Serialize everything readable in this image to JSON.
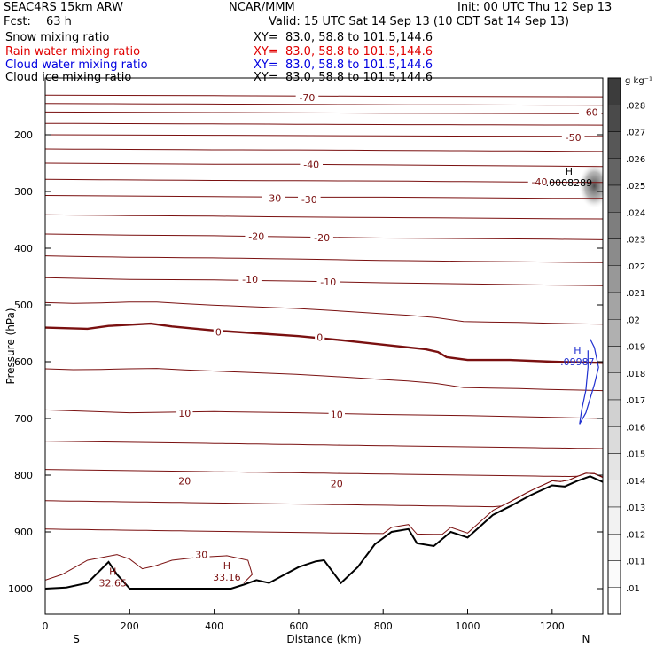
{
  "header": {
    "model": "SEAC4RS 15km ARW",
    "org": "NCAR/MMM",
    "init": "Init: 00 UTC Thu 12 Sep 13",
    "fcst_label": "Fcst:",
    "fcst_value": "63 h",
    "valid": "Valid: 15 UTC Sat 14 Sep 13 (10 CDT Sat 14 Sep 13)"
  },
  "fields": [
    {
      "label": "Snow mixing ratio",
      "xy": "XY=  83.0, 58.8 to 101.5,144.6",
      "color": "#000000"
    },
    {
      "label": "Rain water mixing ratio",
      "xy": "XY=  83.0, 58.8 to 101.5,144.6",
      "color": "#e00000"
    },
    {
      "label": "Cloud water mixing ratio",
      "xy": "XY=  83.0, 58.8 to 101.5,144.6",
      "color": "#0000e0"
    },
    {
      "label": "Cloud ice mixing ratio",
      "xy": "XY=  83.0, 58.8 to 101.5,144.6",
      "color": "#000000"
    }
  ],
  "colorbar": {
    "unit": "g kg⁻¹",
    "labels": [
      ".028",
      ".027",
      ".026",
      ".025",
      ".024",
      ".023",
      ".022",
      ".021",
      ".02",
      ".019",
      ".018",
      ".017",
      ".016",
      ".015",
      ".014",
      ".013",
      ".012",
      ".011",
      ".01"
    ],
    "gray_shades": [
      "#3c3c3c",
      "#4a4a4a",
      "#575757",
      "#646464",
      "#717171",
      "#7e7e7e",
      "#8b8b8b",
      "#989898",
      "#a4a4a4",
      "#b0b0b0",
      "#bcbcbc",
      "#c7c7c7",
      "#d1d1d1",
      "#dbdbdb",
      "#e4e4e4",
      "#ecececff",
      "#f2f2f2",
      "#f7f7f7",
      "#fbfbfb",
      "#ffffff"
    ]
  },
  "chart_data": {
    "type": "contour cross-section",
    "xlabel": "Distance (km)",
    "ylabel": "Pressure (hPa)",
    "xlim": [
      0,
      1320
    ],
    "ylim": [
      1050,
      100
    ],
    "x_ticks": [
      0,
      200,
      400,
      600,
      800,
      1000,
      1200
    ],
    "y_ticks": [
      200,
      300,
      400,
      500,
      600,
      700,
      800,
      900,
      1000
    ],
    "x_end_labels": {
      "left": "S",
      "right": "N"
    },
    "temperature_contours": [
      {
        "value": 10,
        "label": "10",
        "points": [
          [
            0,
            685
          ],
          [
            200,
            690
          ],
          [
            400,
            688
          ],
          [
            600,
            690
          ],
          [
            800,
            693
          ],
          [
            1000,
            695
          ],
          [
            1200,
            698
          ],
          [
            1320,
            700
          ]
        ],
        "label_at": [
          [
            330,
            691
          ],
          [
            690,
            693
          ]
        ]
      },
      {
        "value": 0,
        "label": "0",
        "points": [
          [
            0,
            540
          ],
          [
            100,
            542
          ],
          [
            150,
            537
          ],
          [
            250,
            533
          ],
          [
            300,
            538
          ],
          [
            400,
            545
          ],
          [
            500,
            550
          ],
          [
            600,
            555
          ],
          [
            700,
            562
          ],
          [
            800,
            570
          ],
          [
            900,
            578
          ],
          [
            930,
            583
          ],
          [
            950,
            592
          ],
          [
            1000,
            597
          ],
          [
            1100,
            597
          ],
          [
            1200,
            600
          ],
          [
            1320,
            602
          ]
        ],
        "label_at": [
          [
            410,
            548
          ],
          [
            650,
            557
          ]
        ]
      },
      {
        "value": -10,
        "label": "-10",
        "points": [
          [
            0,
            452
          ],
          [
            200,
            455
          ],
          [
            400,
            456
          ],
          [
            600,
            458
          ],
          [
            800,
            461
          ],
          [
            1000,
            463
          ],
          [
            1200,
            465
          ],
          [
            1320,
            466
          ]
        ],
        "label_at": [
          [
            485,
            455
          ],
          [
            670,
            459
          ]
        ]
      },
      {
        "value": -20,
        "label": "-20",
        "points": [
          [
            0,
            375
          ],
          [
            200,
            377
          ],
          [
            400,
            378
          ],
          [
            600,
            380
          ],
          [
            800,
            382
          ],
          [
            1000,
            383
          ],
          [
            1200,
            384
          ],
          [
            1320,
            385
          ]
        ],
        "label_at": [
          [
            500,
            379
          ],
          [
            655,
            381
          ]
        ]
      },
      {
        "value": -30,
        "label": "-30",
        "points": [
          [
            0,
            307
          ],
          [
            200,
            308
          ],
          [
            400,
            309
          ],
          [
            600,
            310
          ],
          [
            800,
            310
          ],
          [
            1000,
            311
          ],
          [
            1200,
            312
          ],
          [
            1320,
            312
          ]
        ],
        "label_at": [
          [
            540,
            312
          ],
          [
            625,
            314
          ]
        ]
      },
      {
        "value": -40,
        "label": "-40",
        "points": [
          [
            0,
            250
          ],
          [
            200,
            251
          ],
          [
            400,
            252
          ],
          [
            600,
            252
          ],
          [
            800,
            253
          ],
          [
            1000,
            254
          ],
          [
            1200,
            255
          ],
          [
            1320,
            256
          ]
        ],
        "label_at": [
          [
            630,
            252
          ],
          [
            1170,
            283
          ]
        ]
      },
      {
        "value": -50,
        "label": "-50",
        "points": [
          [
            0,
            200
          ],
          [
            400,
            201
          ],
          [
            800,
            202
          ],
          [
            1320,
            203
          ]
        ],
        "label_at": [
          [
            1250,
            205
          ]
        ]
      },
      {
        "value": -60,
        "label": "-60",
        "points": [
          [
            0,
            160
          ],
          [
            400,
            161
          ],
          [
            800,
            162
          ],
          [
            1320,
            163
          ]
        ],
        "label_at": [
          [
            1290,
            160
          ]
        ]
      },
      {
        "value": -70,
        "label": "-70",
        "points": [
          [
            0,
            130
          ],
          [
            400,
            131
          ],
          [
            800,
            132
          ],
          [
            1320,
            133
          ]
        ],
        "label_at": [
          [
            620,
            134
          ]
        ]
      }
    ],
    "other_isotherms_labels": [
      {
        "value": 20,
        "label": "20",
        "label_at": [
          [
            330,
            810
          ],
          [
            690,
            815
          ]
        ]
      },
      {
        "value": 30,
        "label": "30",
        "label_at": [
          [
            370,
            940
          ]
        ]
      }
    ],
    "terrain_pressure": [
      [
        0,
        1000
      ],
      [
        50,
        998
      ],
      [
        100,
        990
      ],
      [
        150,
        953
      ],
      [
        170,
        975
      ],
      [
        200,
        1000
      ],
      [
        300,
        1000
      ],
      [
        400,
        1000
      ],
      [
        440,
        1000
      ],
      [
        470,
        993
      ],
      [
        500,
        985
      ],
      [
        530,
        990
      ],
      [
        560,
        978
      ],
      [
        600,
        962
      ],
      [
        640,
        952
      ],
      [
        660,
        950
      ],
      [
        700,
        990
      ],
      [
        740,
        962
      ],
      [
        780,
        922
      ],
      [
        820,
        900
      ],
      [
        860,
        895
      ],
      [
        880,
        920
      ],
      [
        920,
        925
      ],
      [
        960,
        900
      ],
      [
        1000,
        910
      ],
      [
        1030,
        890
      ],
      [
        1060,
        870
      ],
      [
        1100,
        855
      ],
      [
        1150,
        835
      ],
      [
        1200,
        818
      ],
      [
        1230,
        820
      ],
      [
        1260,
        810
      ],
      [
        1290,
        802
      ],
      [
        1320,
        812
      ]
    ],
    "maxima": [
      {
        "label": "H",
        "value": "32.65",
        "x": 160,
        "p": 985
      },
      {
        "label": "H",
        "value": "33.16",
        "x": 430,
        "p": 975
      },
      {
        "label": "H",
        "value": ".09987",
        "x": 1260,
        "p": 595
      },
      {
        "label": "H",
        "value": ".0008289",
        "x": 1240,
        "p": 280
      }
    ],
    "cloud_water_contour": [
      [
        1290,
        560
      ],
      [
        1300,
        575
      ],
      [
        1310,
        610
      ],
      [
        1300,
        640
      ],
      [
        1290,
        665
      ],
      [
        1280,
        690
      ],
      [
        1265,
        710
      ],
      [
        1270,
        685
      ],
      [
        1280,
        650
      ],
      [
        1285,
        610
      ],
      [
        1285,
        580
      ]
    ],
    "ice_shading": {
      "x": 1300,
      "p": 290,
      "max": 0.028
    }
  }
}
